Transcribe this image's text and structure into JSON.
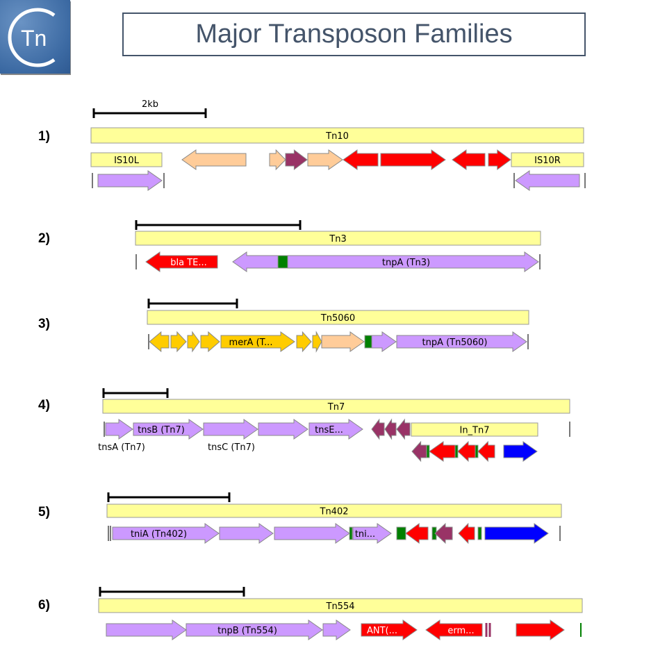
{
  "title": "Major Transposon Families",
  "logo_text": "Tn",
  "scale_label": "2kb",
  "colors": {
    "element_bar": "#ffff99",
    "transposase": "#cc99ff",
    "resistance": "#ff0000",
    "accessory": "#ffcc99",
    "mer_genes": "#ffcc00",
    "regulatory": "#993366",
    "att_site": "#008000",
    "integrase_cassette": "#0000ff",
    "title_text": "#44546a"
  },
  "rows": [
    {
      "number": "1)",
      "name": "Tn10",
      "labels": {
        "is_left": "IS10L",
        "is_right": "IS10R"
      }
    },
    {
      "number": "2)",
      "name": "Tn3",
      "labels": {
        "bla": "bla TE...",
        "tnpA": "tnpA (Tn3)"
      }
    },
    {
      "number": "3)",
      "name": "Tn5060",
      "labels": {
        "merA": "merA (T...",
        "tnpA": "tnpA (Tn5060)"
      }
    },
    {
      "number": "4)",
      "name": "Tn7",
      "labels": {
        "tnsA": "tnsA (Tn7)",
        "tnsB": "tnsB (Tn7)",
        "tnsC": "tnsC (Tn7)",
        "tnsE": "tnsE...",
        "integron": "In_Tn7"
      }
    },
    {
      "number": "5)",
      "name": "Tn402",
      "labels": {
        "tniA": "tniA (Tn402)",
        "tni": "tni..."
      }
    },
    {
      "number": "6)",
      "name": "Tn554",
      "labels": {
        "tnpB": "tnpB (Tn554)",
        "ant": "ANT(...",
        "erm": "erm..."
      }
    }
  ]
}
